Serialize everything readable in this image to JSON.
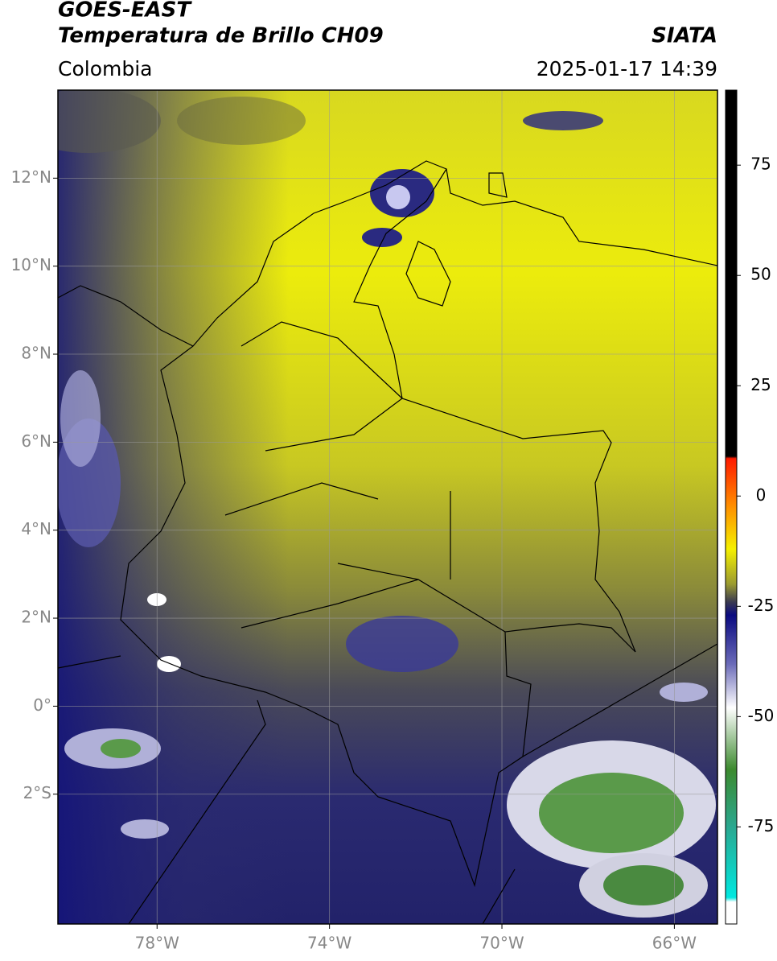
{
  "header": {
    "title": "GOES-EAST",
    "subtitle": "Temperatura de Brillo CH09",
    "source": "SIATA",
    "region": "Colombia",
    "timestamp": "2025-01-17 14:39"
  },
  "map": {
    "type": "map",
    "xlim": [
      -80.3,
      -65.0
    ],
    "ylim": [
      -4.95,
      14.0
    ],
    "xticks": [
      {
        "value": -78,
        "label": "78°W"
      },
      {
        "value": -74,
        "label": "74°W"
      },
      {
        "value": -70,
        "label": "70°W"
      },
      {
        "value": -66,
        "label": "66°W"
      }
    ],
    "yticks": [
      {
        "value": 12,
        "label": "12°N"
      },
      {
        "value": 10,
        "label": "10°N"
      },
      {
        "value": 8,
        "label": "8°N"
      },
      {
        "value": 6,
        "label": "6°N"
      },
      {
        "value": 4,
        "label": "4°N"
      },
      {
        "value": 2,
        "label": "2°N"
      },
      {
        "value": 0,
        "label": "0°"
      },
      {
        "value": -2,
        "label": "2°S"
      }
    ],
    "grid": true,
    "colorbar": {
      "lim": [
        -97,
        92
      ],
      "ticks": [
        75,
        50,
        25,
        0,
        -25,
        -50,
        -75
      ],
      "stops": [
        {
          "value": 92,
          "color": "#000000"
        },
        {
          "value": 9,
          "color": "#000000"
        },
        {
          "value": 8.5,
          "color": "#ff1a00"
        },
        {
          "value": -2,
          "color": "#ff8c00"
        },
        {
          "value": -12,
          "color": "#f5f000"
        },
        {
          "value": -20,
          "color": "#9a9a30"
        },
        {
          "value": -24,
          "color": "#3a3a50"
        },
        {
          "value": -27,
          "color": "#0a0a80"
        },
        {
          "value": -38,
          "color": "#6a6ab8"
        },
        {
          "value": -48,
          "color": "#ffffff"
        },
        {
          "value": -62,
          "color": "#3c8a2e"
        },
        {
          "value": -75,
          "color": "#2aa890"
        },
        {
          "value": -91,
          "color": "#00e8e0"
        },
        {
          "value": -92,
          "color": "#ffffff"
        },
        {
          "value": -97,
          "color": "#ffffff"
        }
      ]
    }
  }
}
